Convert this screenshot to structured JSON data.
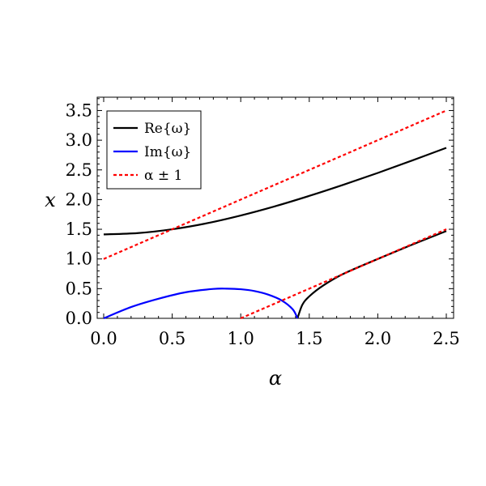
{
  "chart_data": {
    "type": "line",
    "xlabel": "α",
    "ylabel": "x",
    "xlim": [
      0,
      2.5
    ],
    "ylim": [
      0,
      3.7
    ],
    "x_ticks": [
      "0.0",
      "0.5",
      "1.0",
      "1.5",
      "2.0",
      "2.5"
    ],
    "y_ticks": [
      "0.0",
      "0.5",
      "1.0",
      "1.5",
      "2.0",
      "2.5",
      "3.0",
      "3.5"
    ],
    "grid": false,
    "legend_position": "top-left",
    "series": [
      {
        "name": "Re{ω}",
        "color": "#000000",
        "style": "solid",
        "segments": [
          {
            "x": [
              0.0,
              0.25,
              0.5,
              0.75,
              1.0,
              1.25,
              1.5,
              1.75,
              2.0,
              2.25,
              2.5
            ],
            "y": [
              1.414,
              1.436,
              1.5,
              1.6,
              1.732,
              1.887,
              2.062,
              2.25,
              2.449,
              2.658,
              2.872
            ]
          },
          {
            "x": [
              1.414,
              1.45,
              1.5,
              1.6,
              1.75,
              2.0,
              2.25,
              2.5
            ],
            "y": [
              0.0,
              0.23,
              0.37,
              0.55,
              0.75,
              1.0,
              1.24,
              1.47
            ]
          }
        ]
      },
      {
        "name": "Im{ω}",
        "color": "#0000ff",
        "style": "solid",
        "segments": [
          {
            "x": [
              0.0,
              0.2,
              0.4,
              0.6,
              0.8,
              0.9,
              1.0,
              1.1,
              1.2,
              1.3,
              1.38,
              1.414
            ],
            "y": [
              0.0,
              0.19,
              0.33,
              0.44,
              0.495,
              0.5,
              0.49,
              0.46,
              0.4,
              0.3,
              0.15,
              0.0
            ]
          }
        ]
      },
      {
        "name": "α ± 1",
        "color": "#ff0000",
        "style": "dashed",
        "segments": [
          {
            "x": [
              0.0,
              2.5
            ],
            "y": [
              1.0,
              3.5
            ]
          },
          {
            "x": [
              1.0,
              2.5
            ],
            "y": [
              0.0,
              1.5
            ]
          }
        ]
      }
    ]
  }
}
